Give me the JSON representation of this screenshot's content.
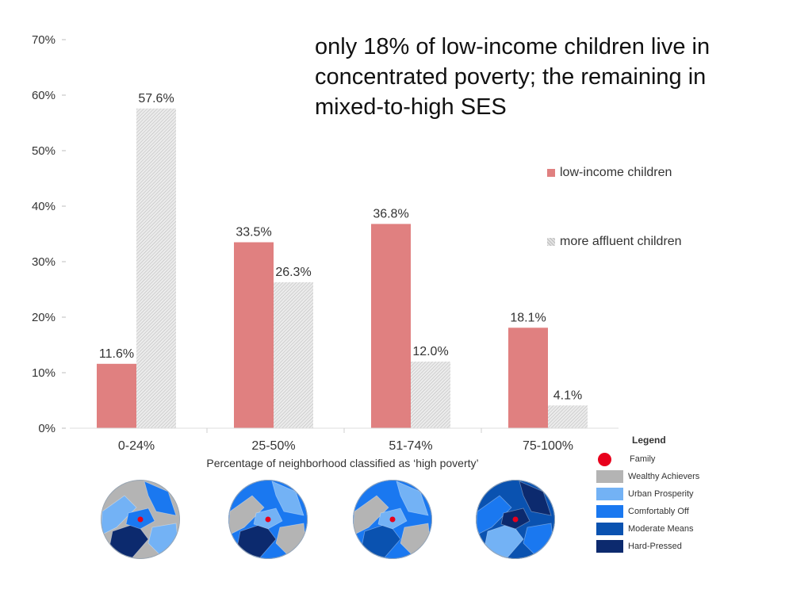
{
  "headline": "only 18% of low-income children live in concentrated poverty; the remaining in mixed-to-high SES",
  "chart_data": {
    "type": "bar",
    "categories": [
      "0-24%",
      "25-50%",
      "51-74%",
      "75-100%"
    ],
    "series": [
      {
        "name": "low-income children",
        "values": [
          11.6,
          33.5,
          36.8,
          18.1
        ],
        "labels": [
          "11.6%",
          "33.5%",
          "36.8%",
          "18.1%"
        ],
        "color": "#e08080"
      },
      {
        "name": "more affluent children",
        "values": [
          57.6,
          26.3,
          12.0,
          4.1
        ],
        "labels": [
          "57.6%",
          "26.3%",
          "12.0%",
          "4.1%"
        ],
        "color": "#e0e0e0"
      }
    ],
    "y_ticks": [
      0,
      10,
      20,
      30,
      40,
      50,
      60,
      70
    ],
    "y_tick_labels": [
      "0%",
      "10%",
      "20%",
      "30%",
      "40%",
      "50%",
      "60%",
      "70%"
    ],
    "ylim": [
      0,
      70
    ],
    "xlabel": "Percentage of neighborhood classified as ‘high poverty’",
    "ylabel": "",
    "grid": false,
    "legend_position": "right"
  },
  "map_legend": {
    "title": "Legend",
    "items": [
      {
        "label": "Family",
        "color": "#e8001c",
        "kind": "dot"
      },
      {
        "label": "Wealthy Achievers",
        "color": "#b4b4b4",
        "kind": "box"
      },
      {
        "label": "Urban Prosperity",
        "color": "#73b2f5",
        "kind": "box"
      },
      {
        "label": "Comfortably Off",
        "color": "#1a78f0",
        "kind": "box"
      },
      {
        "label": "Moderate Means",
        "color": "#0a52b0",
        "kind": "box"
      },
      {
        "label": "Hard-Pressed",
        "color": "#0c2a6e",
        "kind": "box"
      }
    ]
  },
  "maps": [
    {
      "name": "map-0-24",
      "base": "#b4b4b4",
      "accents": [
        "#73b2f5",
        "#1a78f0",
        "#0c2a6e"
      ]
    },
    {
      "name": "map-25-50",
      "base": "#1a78f0",
      "accents": [
        "#b4b4b4",
        "#73b2f5",
        "#0c2a6e"
      ]
    },
    {
      "name": "map-51-74",
      "base": "#1a78f0",
      "accents": [
        "#b4b4b4",
        "#73b2f5",
        "#0a52b0"
      ]
    },
    {
      "name": "map-75-100",
      "base": "#0a52b0",
      "accents": [
        "#1a78f0",
        "#0c2a6e",
        "#73b2f5"
      ]
    }
  ]
}
